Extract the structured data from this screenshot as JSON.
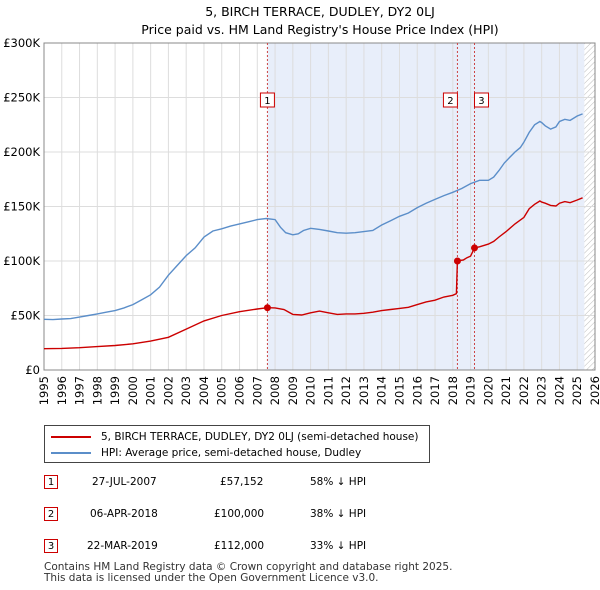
{
  "chart_data": {
    "type": "line",
    "title": "5, BIRCH TERRACE, DUDLEY, DY2 0LJ",
    "subtitle": "Price paid vs. HM Land Registry's House Price Index (HPI)",
    "xlabel": "",
    "ylabel": "",
    "xlim": [
      1995.0,
      2026.0
    ],
    "ylim": [
      0,
      300000
    ],
    "x_ticks": [
      "1995",
      "1996",
      "1997",
      "1998",
      "1999",
      "2000",
      "2001",
      "2002",
      "2003",
      "2004",
      "2005",
      "2006",
      "2007",
      "2008",
      "2009",
      "2010",
      "2011",
      "2012",
      "2013",
      "2014",
      "2015",
      "2016",
      "2017",
      "2018",
      "2019",
      "2020",
      "2021",
      "2022",
      "2023",
      "2024",
      "2025",
      "2026"
    ],
    "y_ticks": [
      {
        "value": 0,
        "label": "£0"
      },
      {
        "value": 50000,
        "label": "£50K"
      },
      {
        "value": 100000,
        "label": "£100K"
      },
      {
        "value": 150000,
        "label": "£150K"
      },
      {
        "value": 200000,
        "label": "£200K"
      },
      {
        "value": 250000,
        "label": "£250K"
      },
      {
        "value": 300000,
        "label": "£300K"
      }
    ],
    "shaded_range": [
      2007.57,
      2025.4
    ],
    "future_start": 2025.4,
    "series": [
      {
        "name": "5, BIRCH TERRACE, DUDLEY, DY2 0LJ (semi-detached house)",
        "color": "#cc0000",
        "x": [
          1995.0,
          1996.0,
          1997.0,
          1998.0,
          1999.0,
          2000.0,
          2001.0,
          2002.0,
          2003.0,
          2004.0,
          2005.0,
          2006.0,
          2007.0,
          2007.57,
          2008.0,
          2008.5,
          2009.0,
          2009.5,
          2010.0,
          2010.5,
          2011.0,
          2011.5,
          2012.0,
          2012.5,
          2013.0,
          2013.5,
          2014.0,
          2014.5,
          2015.0,
          2015.5,
          2016.0,
          2016.5,
          2017.0,
          2017.5,
          2018.0,
          2018.2,
          2018.26,
          2018.4,
          2018.6,
          2018.8,
          2019.0,
          2019.22,
          2019.5,
          2019.8,
          2020.0,
          2020.3,
          2020.6,
          2021.0,
          2021.5,
          2022.0,
          2022.3,
          2022.6,
          2022.9,
          2023.0,
          2023.2,
          2023.5,
          2023.8,
          2024.0,
          2024.3,
          2024.6,
          2025.0,
          2025.3
        ],
        "y": [
          19500,
          19800,
          20500,
          21500,
          22500,
          24000,
          26500,
          30000,
          37500,
          45000,
          50000,
          53500,
          56000,
          57152,
          57000,
          55500,
          51000,
          50500,
          52500,
          54000,
          52500,
          51000,
          51500,
          51500,
          52000,
          53000,
          54500,
          55500,
          56500,
          57500,
          60000,
          62500,
          64000,
          67000,
          68500,
          70000,
          100000,
          100500,
          101000,
          103000,
          104500,
          112000,
          113000,
          114500,
          115500,
          118000,
          122000,
          127000,
          134000,
          140000,
          148000,
          152000,
          155000,
          154000,
          153000,
          151000,
          150500,
          153000,
          154500,
          153500,
          156000,
          158000
        ]
      },
      {
        "name": "HPI: Average price, semi-detached house, Dudley",
        "color": "#5b8ec9",
        "x": [
          1995.0,
          1995.5,
          1996.0,
          1996.5,
          1997.0,
          1997.5,
          1998.0,
          1998.5,
          1999.0,
          1999.5,
          2000.0,
          2000.5,
          2001.0,
          2001.5,
          2002.0,
          2002.5,
          2003.0,
          2003.5,
          2004.0,
          2004.5,
          2005.0,
          2005.5,
          2006.0,
          2006.5,
          2007.0,
          2007.5,
          2008.0,
          2008.3,
          2008.6,
          2009.0,
          2009.3,
          2009.6,
          2010.0,
          2010.5,
          2011.0,
          2011.5,
          2012.0,
          2012.5,
          2013.0,
          2013.5,
          2014.0,
          2014.5,
          2015.0,
          2015.5,
          2016.0,
          2016.5,
          2017.0,
          2017.5,
          2018.0,
          2018.5,
          2019.0,
          2019.5,
          2020.0,
          2020.3,
          2020.6,
          2020.9,
          2021.2,
          2021.5,
          2021.8,
          2022.0,
          2022.3,
          2022.6,
          2022.9,
          2023.0,
          2023.2,
          2023.5,
          2023.8,
          2024.0,
          2024.3,
          2024.6,
          2025.0,
          2025.3
        ],
        "y": [
          46500,
          46200,
          46800,
          47200,
          48500,
          50000,
          51500,
          53000,
          54500,
          57000,
          60000,
          64500,
          69000,
          76000,
          87000,
          96000,
          105000,
          112000,
          122000,
          127500,
          129500,
          132000,
          134000,
          136000,
          138000,
          139000,
          138000,
          131000,
          126000,
          124000,
          125000,
          128000,
          130000,
          129000,
          127500,
          126000,
          125500,
          126000,
          127000,
          128000,
          133000,
          137000,
          141000,
          144000,
          149000,
          153000,
          156500,
          160000,
          163000,
          166500,
          171000,
          174000,
          174000,
          177000,
          183000,
          190000,
          195000,
          200000,
          204000,
          209000,
          218000,
          225000,
          228000,
          227000,
          224000,
          221000,
          223000,
          228000,
          230000,
          229000,
          233000,
          235000
        ]
      }
    ],
    "markers": [
      {
        "label": "1",
        "x": 2007.57,
        "y": 57152
      },
      {
        "label": "2",
        "x": 2018.26,
        "y": 100000
      },
      {
        "label": "3",
        "x": 2019.22,
        "y": 112000
      }
    ]
  },
  "legend": {
    "items": [
      {
        "label": "5, BIRCH TERRACE, DUDLEY, DY2 0LJ (semi-detached house)",
        "color": "#cc0000"
      },
      {
        "label": "HPI: Average price, semi-detached house, Dudley",
        "color": "#5b8ec9"
      }
    ]
  },
  "transactions": [
    {
      "num": "1",
      "date": "27-JUL-2007",
      "price": "£57,152",
      "hpi": "58% ↓ HPI"
    },
    {
      "num": "2",
      "date": "06-APR-2018",
      "price": "£100,000",
      "hpi": "38% ↓ HPI"
    },
    {
      "num": "3",
      "date": "22-MAR-2019",
      "price": "£112,000",
      "hpi": "33% ↓ HPI"
    }
  ],
  "footer": {
    "line1": "Contains HM Land Registry data © Crown copyright and database right 2025.",
    "line2": "This data is licensed under the Open Government Licence v3.0."
  }
}
